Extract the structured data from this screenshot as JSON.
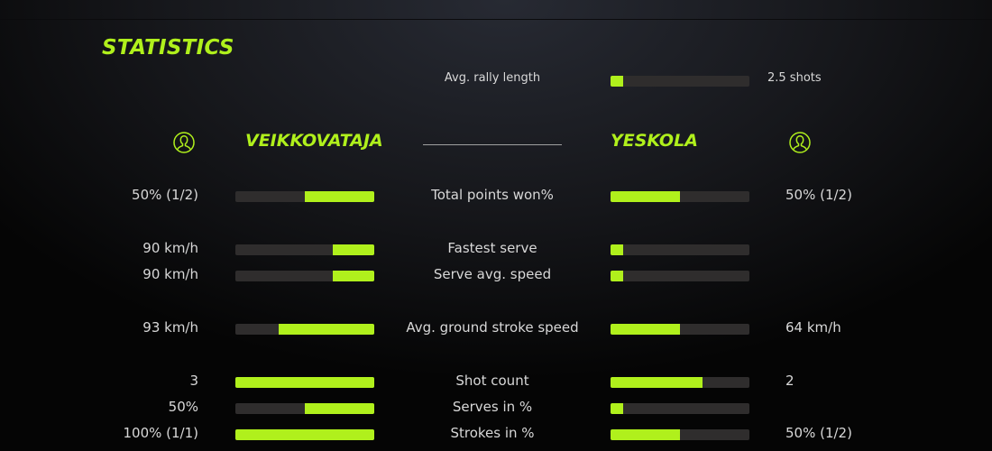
{
  "colors": {
    "accent": "#b0f01c",
    "track": "#2f2d2d"
  },
  "title": "STATISTICS",
  "rally": {
    "label": "Avg. rally length",
    "value": "2.5 shots",
    "fill": 0.09
  },
  "players": {
    "left": {
      "name": "VEIKKOVATAJA",
      "icon": "user-icon"
    },
    "right": {
      "name": "YESKOLA",
      "icon": "user-icon"
    }
  },
  "stats": [
    {
      "label": "Total points won%",
      "left": "50% (1/2)",
      "right": "50% (1/2)",
      "left_fill": 0.5,
      "right_fill": 0.5
    },
    {
      "label": "Fastest serve",
      "left": "90 km/h",
      "right": "",
      "left_fill": 0.3,
      "right_fill": 0.09
    },
    {
      "label": "Serve avg. speed",
      "left": "90 km/h",
      "right": "",
      "left_fill": 0.3,
      "right_fill": 0.09
    },
    {
      "label": "Avg. ground stroke speed",
      "left": "93 km/h",
      "right": "64 km/h",
      "left_fill": 0.69,
      "right_fill": 0.5
    },
    {
      "label": "Shot count",
      "left": "3",
      "right": "2",
      "left_fill": 1.0,
      "right_fill": 0.66
    },
    {
      "label": "Serves in %",
      "left": "50%",
      "right": "",
      "left_fill": 0.5,
      "right_fill": 0.09
    },
    {
      "label": "Strokes in %",
      "left": "100% (1/1)",
      "right": "50% (1/2)",
      "left_fill": 1.0,
      "right_fill": 0.5
    }
  ]
}
